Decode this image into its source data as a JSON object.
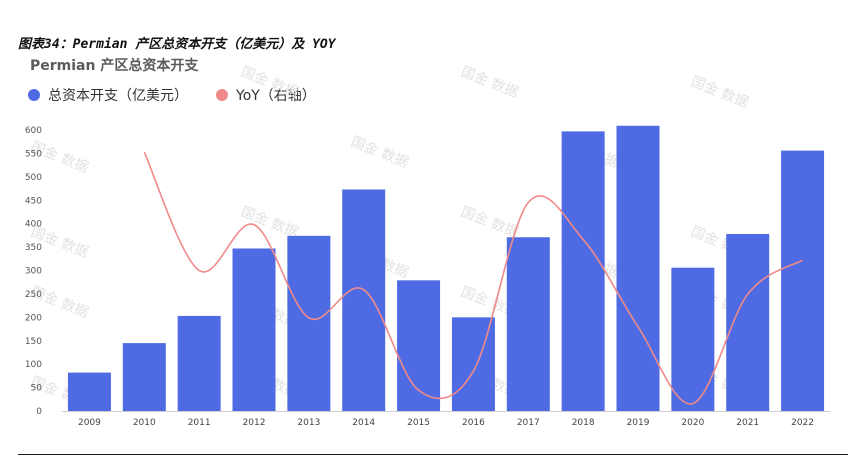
{
  "caption": "图表34：Permian 产区总资本开支（亿美元）及 YOY",
  "colors": {
    "bar": "#4e6be3",
    "line": "#f08a8a"
  },
  "watermark": "国金 数据",
  "chart_data": {
    "type": "bar",
    "title": "Permian 产区总资本开支",
    "categories": [
      "2009",
      "2010",
      "2011",
      "2012",
      "2013",
      "2014",
      "2015",
      "2016",
      "2017",
      "2018",
      "2019",
      "2020",
      "2021",
      "2022"
    ],
    "series": [
      {
        "name": "总资本开支（亿美元）",
        "type": "bar",
        "values": [
          82,
          145,
          203,
          347,
          374,
          473,
          279,
          200,
          371,
          597,
          609,
          306,
          378,
          556
        ]
      },
      {
        "name": "YoY（右轴）",
        "type": "line",
        "values": [
          null,
          1.2,
          0.4,
          0.71,
          0.08,
          0.27,
          -0.41,
          -0.28,
          0.86,
          0.61,
          0.02,
          -0.5,
          0.24,
          0.47
        ]
      }
    ],
    "ylim": [
      0,
      600
    ],
    "yticks": [
      0,
      50,
      100,
      150,
      200,
      250,
      300,
      350,
      400,
      450,
      500,
      550,
      600
    ],
    "legend": "top-left"
  }
}
